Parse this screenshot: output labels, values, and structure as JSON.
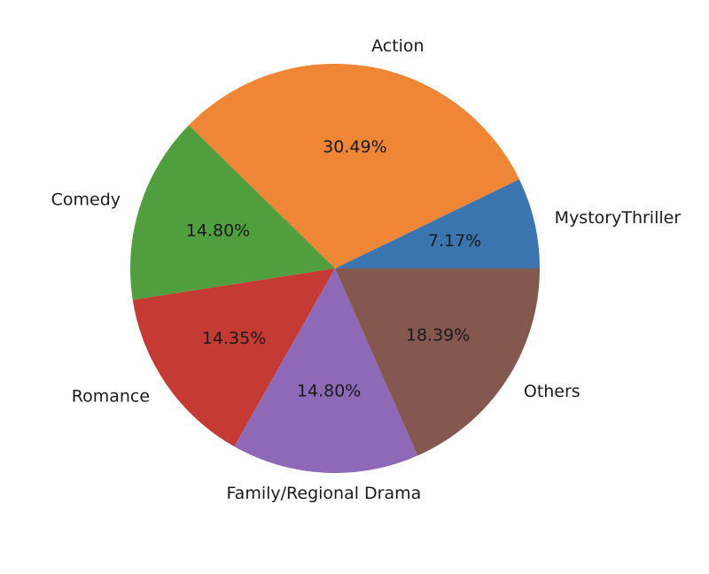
{
  "chart_data": {
    "type": "pie",
    "start_angle_deg": 0,
    "direction": "counterclockwise",
    "slices": [
      {
        "label": "MystoryThriller",
        "value": 7.17,
        "pct_text": "7.17%",
        "color": "#3a75af"
      },
      {
        "label": "Action",
        "value": 30.49,
        "pct_text": "30.49%",
        "color": "#ef8636"
      },
      {
        "label": "Comedy",
        "value": 14.8,
        "pct_text": "14.80%",
        "color": "#519e3e"
      },
      {
        "label": "Romance",
        "value": 14.35,
        "pct_text": "14.35%",
        "color": "#c53a32"
      },
      {
        "label": "Family/Regional Drama",
        "value": 14.8,
        "pct_text": "14.80%",
        "color": "#8d69b8"
      },
      {
        "label": "Others",
        "value": 18.39,
        "pct_text": "18.39%",
        "color": "#84584e"
      }
    ]
  }
}
